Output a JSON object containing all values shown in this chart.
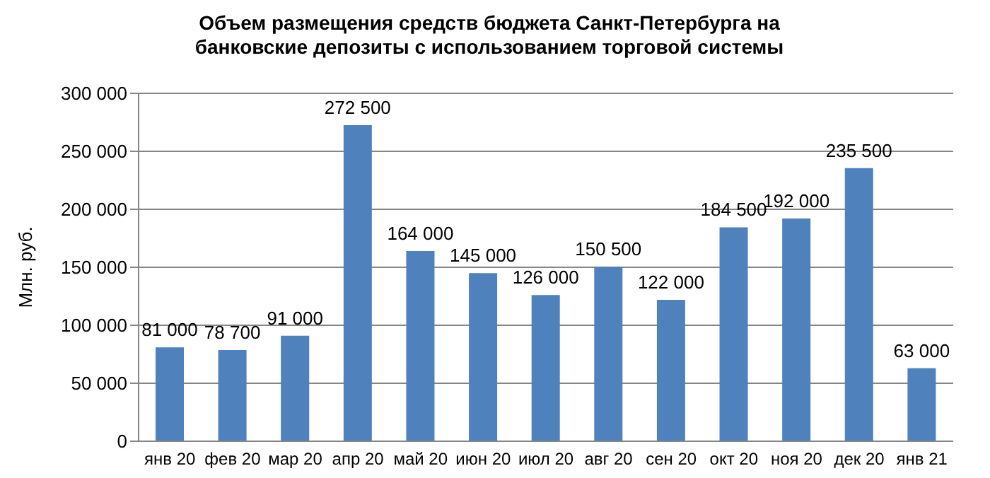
{
  "chart_data": {
    "type": "bar",
    "title": "Объем размещения средств бюджета Санкт-Петербурга на банковские депозиты с использованием торговой системы",
    "ylabel": "Млн. руб.",
    "categories": [
      "янв 20",
      "фев 20",
      "мар 20",
      "апр 20",
      "май 20",
      "июн 20",
      "июл 20",
      "авг 20",
      "сен 20",
      "окт 20",
      "ноя 20",
      "дек 20",
      "янв 21"
    ],
    "values": [
      81000,
      78700,
      91000,
      272500,
      164000,
      145000,
      126000,
      150500,
      122000,
      184500,
      192000,
      235500,
      63000
    ],
    "color": "#4f81bd",
    "ylim": [
      0,
      300000
    ],
    "yticks": [
      0,
      50000,
      100000,
      150000,
      200000,
      250000,
      300000
    ],
    "grid": "y",
    "data_labels": true
  }
}
